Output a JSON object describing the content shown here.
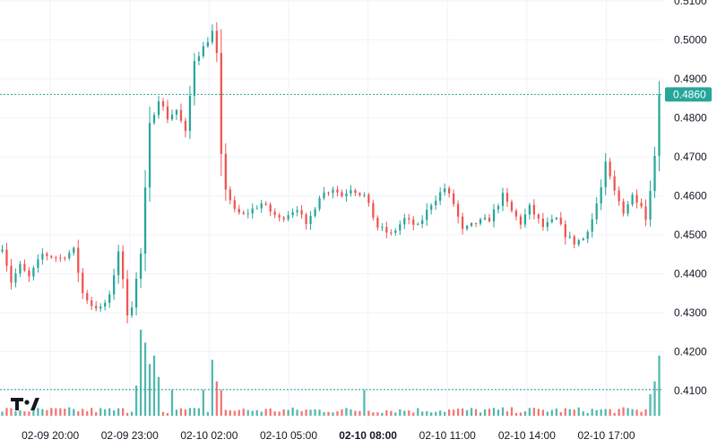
{
  "chart_data": {
    "type": "candlestick",
    "y_axis": {
      "min": 0.4022,
      "max": 0.5102,
      "ticks": [
        "0.4100",
        "0.4200",
        "0.4300",
        "0.4400",
        "0.4500",
        "0.4600",
        "0.4700",
        "0.4800",
        "0.4900",
        "0.5000",
        "0.5100"
      ]
    },
    "x_axis": {
      "ticks": [
        {
          "label": "02-09 20:00",
          "hours": 0,
          "bold": false
        },
        {
          "label": "02-09 23:00",
          "hours": 3,
          "bold": false
        },
        {
          "label": "02-10 02:00",
          "hours": 6,
          "bold": false
        },
        {
          "label": "02-10 05:00",
          "hours": 9,
          "bold": false
        },
        {
          "label": "02-10 08:00",
          "hours": 12,
          "bold": true
        },
        {
          "label": "02-10 11:00",
          "hours": 15,
          "bold": false
        },
        {
          "label": "02-10 14:00",
          "hours": 18,
          "bold": false
        },
        {
          "label": "02-10 17:00",
          "hours": 21,
          "bold": false
        }
      ],
      "start_offset_hours": -1.9,
      "end_offset_hours": 23.15
    },
    "last_price": {
      "value": 0.486,
      "label": "0.4860"
    },
    "volume_line_price": 0.4103,
    "colors": {
      "up": "#26a69a",
      "down": "#ef5350",
      "grid": "#f0f3fa",
      "crosshair": "#26a69a",
      "axis_text": "#131722"
    },
    "anchors": [
      [
        0,
        0.447
      ],
      [
        2,
        0.438
      ],
      [
        4,
        0.442
      ],
      [
        6,
        0.439
      ],
      [
        9,
        0.445
      ],
      [
        13,
        0.444
      ],
      [
        16,
        0.446
      ],
      [
        18,
        0.435
      ],
      [
        20,
        0.432
      ],
      [
        22,
        0.431
      ],
      [
        24,
        0.434
      ],
      [
        26,
        0.446
      ],
      [
        28,
        0.43
      ],
      [
        29,
        0.432
      ],
      [
        31,
        0.445
      ],
      [
        33,
        0.478
      ],
      [
        35,
        0.485
      ],
      [
        37,
        0.48
      ],
      [
        39,
        0.482
      ],
      [
        41,
        0.476
      ],
      [
        43,
        0.495
      ],
      [
        45,
        0.498
      ],
      [
        47,
        0.502
      ],
      [
        48,
        0.496
      ],
      [
        49,
        0.47
      ],
      [
        50,
        0.462
      ],
      [
        52,
        0.456
      ],
      [
        54,
        0.455
      ],
      [
        58,
        0.458
      ],
      [
        62,
        0.454
      ],
      [
        66,
        0.457
      ],
      [
        68,
        0.452
      ],
      [
        71,
        0.46
      ],
      [
        74,
        0.462
      ],
      [
        76,
        0.46
      ],
      [
        78,
        0.462
      ],
      [
        81,
        0.46
      ],
      [
        84,
        0.452
      ],
      [
        87,
        0.45
      ],
      [
        90,
        0.454
      ],
      [
        93,
        0.452
      ],
      [
        96,
        0.458
      ],
      [
        99,
        0.462
      ],
      [
        101,
        0.458
      ],
      [
        103,
        0.451
      ],
      [
        106,
        0.453
      ],
      [
        109,
        0.454
      ],
      [
        112,
        0.46
      ],
      [
        114,
        0.456
      ],
      [
        116,
        0.453
      ],
      [
        118,
        0.457
      ],
      [
        121,
        0.452
      ],
      [
        124,
        0.454
      ],
      [
        126,
        0.45
      ],
      [
        128,
        0.448
      ],
      [
        130,
        0.449
      ],
      [
        132,
        0.454
      ],
      [
        134,
        0.462
      ],
      [
        135,
        0.468
      ],
      [
        137,
        0.461
      ],
      [
        139,
        0.456
      ],
      [
        141,
        0.46
      ],
      [
        143,
        0.458
      ],
      [
        144,
        0.454
      ],
      [
        146,
        0.47
      ],
      [
        147,
        0.486
      ]
    ],
    "volume_spikes": [
      [
        30,
        0.35
      ],
      [
        31,
        1.0
      ],
      [
        32,
        0.85
      ],
      [
        33,
        0.6
      ],
      [
        34,
        0.7
      ],
      [
        35,
        0.45
      ],
      [
        38,
        0.3
      ],
      [
        45,
        0.3
      ],
      [
        47,
        0.65
      ],
      [
        48,
        0.4
      ],
      [
        49,
        0.3
      ],
      [
        81,
        0.3
      ],
      [
        145,
        0.25
      ],
      [
        146,
        0.4
      ],
      [
        147,
        0.7
      ]
    ]
  }
}
